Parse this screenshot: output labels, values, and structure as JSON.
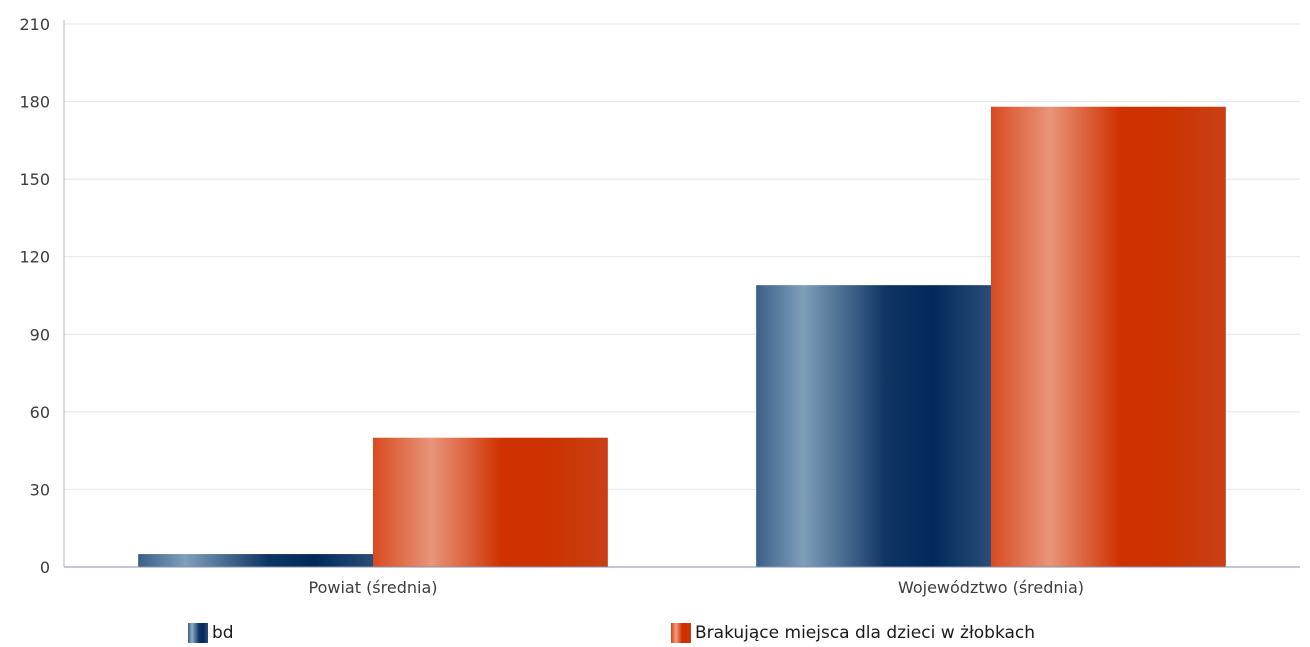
{
  "chart_data": {
    "type": "bar",
    "categories": [
      "Powiat (średnia)",
      "Województwo (średnia)"
    ],
    "series": [
      {
        "name": "bd",
        "values": [
          5,
          109
        ],
        "color": "#00295a"
      },
      {
        "name": "Brakujące miejsca dla dzieci w żłobkach",
        "values": [
          50,
          178
        ],
        "color": "#cc3300"
      }
    ],
    "ylim": [
      0,
      210
    ],
    "yticks": [
      0,
      30,
      60,
      90,
      120,
      150,
      180,
      210
    ],
    "grid": true,
    "legend": "bottom"
  }
}
